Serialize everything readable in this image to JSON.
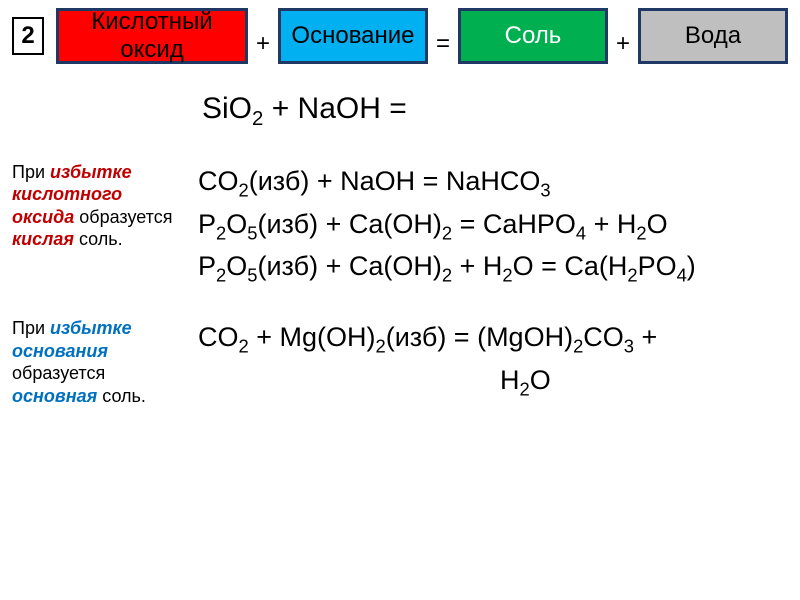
{
  "colors": {
    "acid_oxide_bg": "#ff0000",
    "base_bg": "#00b0f0",
    "salt_bg": "#00b050",
    "water_bg": "#bfbfbf",
    "box_border": "#1f3864",
    "salt_text": "#ffffff",
    "red_text": "#c00000",
    "blue_text": "#0070c0"
  },
  "header": {
    "number": "2",
    "terms": {
      "acid_oxide": "Кислотный оксид",
      "base": "Основание",
      "salt": "Соль",
      "water": "Вода"
    },
    "ops": {
      "plus": "+",
      "eq": "="
    }
  },
  "first_equation": {
    "lhs1": "SiO",
    "sub1": "2",
    "plus": " + NaOH = "
  },
  "notes": {
    "excess_acid_1": "При ",
    "excess_acid_2": "избытке кислотного оксида",
    "excess_acid_3": " образуется ",
    "excess_acid_4": "кислая",
    "excess_acid_5": " соль.",
    "excess_base_1": "При ",
    "excess_base_2": "избытке основания",
    "excess_base_3": " образуется ",
    "excess_base_4": "основная",
    "excess_base_5": " соль."
  },
  "eq2": {
    "a": "CO",
    "a_sub": "2",
    "b": "(изб) + NaOH = NaHCO",
    "b_sub": "3"
  },
  "eq3": {
    "a": "P",
    "a_sub": "2",
    "b": "O",
    "b_sub": "5",
    "c": "(изб)  + Ca(OH)",
    "c_sub": "2",
    "d": " = CaHPO",
    "d_sub": "4",
    "e": " + H",
    "e_sub": "2",
    "f": "O"
  },
  "eq4": {
    "a": "P",
    "a_sub": "2",
    "b": "O",
    "b_sub": "5",
    "c": "(изб)  + Ca(OH)",
    "c_sub": "2",
    "d": " + H",
    "d_sub": "2",
    "e": "O = Ca(H",
    "e_sub": "2",
    "f": "PO",
    "f_sub": "4",
    "g": ")"
  },
  "eq5": {
    "a": "CO",
    "a_sub": "2",
    "b": " + Mg(OH)",
    "b_sub": "2",
    "c": "(изб) = (MgOH)",
    "c_sub": "2",
    "d": "CO",
    "d_sub": "3",
    "e": " +",
    "line2_a": "H",
    "line2_sub": "2",
    "line2_b": "O"
  },
  "typography": {
    "box_fontsize_pt": 18,
    "equation_fontsize_pt": 20,
    "note_fontsize_pt": 14,
    "font_family": "Arial"
  }
}
